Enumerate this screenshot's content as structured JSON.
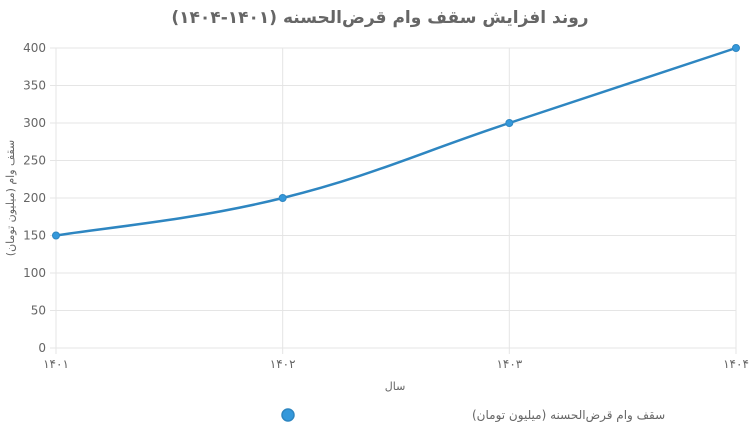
{
  "chart_data": {
    "type": "line",
    "title": "روند افزایش سقف وام قرض‌الحسنه (۱۴۰۱-۱۴۰۴)",
    "xlabel": "سال",
    "ylabel": "سقف وام (میلیون تومان)",
    "categories": [
      "۱۴۰۱",
      "۱۴۰۲",
      "۱۴۰۳",
      "۱۴۰۴"
    ],
    "series": [
      {
        "name": "سقف وام قرض‌الحسنه (میلیون تومان)",
        "values": [
          150,
          200,
          300,
          400
        ],
        "color": "#2e86c1"
      }
    ],
    "ylim": [
      0,
      400
    ],
    "yticks": [
      0,
      50,
      100,
      150,
      200,
      250,
      300,
      350,
      400
    ],
    "grid": true,
    "legend": "bottom"
  }
}
